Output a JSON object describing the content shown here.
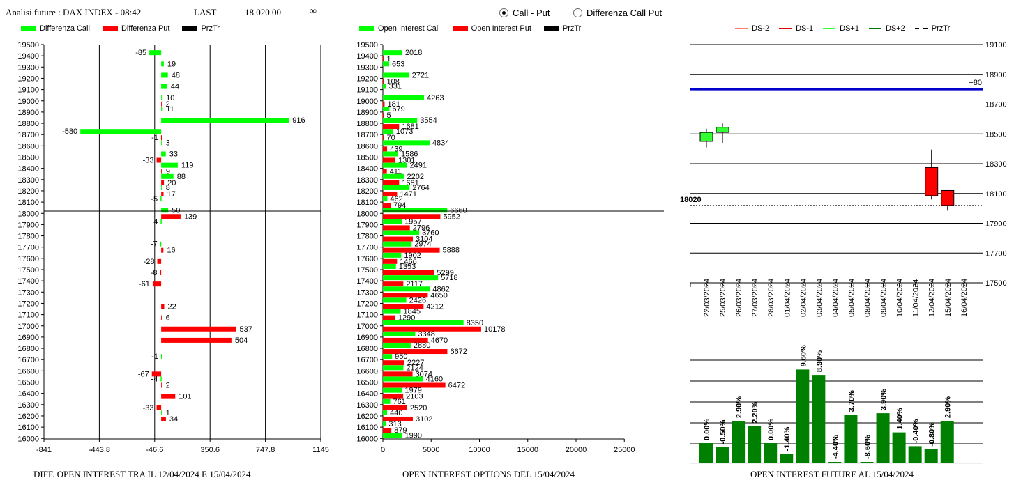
{
  "header": {
    "title": "Analisi future : DAX INDEX - 08:42",
    "last_label": "LAST",
    "last_value": "18 020.00",
    "infinity": "∞",
    "radio_call_put": "Call - Put",
    "radio_diff": "Differenza Call Put",
    "radio_selected": "call_put"
  },
  "captions": {
    "left": "DIFF. OPEN INTEREST TRA IL 12/04/2024 E 15/04/2024",
    "middle": "OPEN INTEREST OPTIONS DEL 15/04/2024",
    "right": "OPEN INTEREST FUTURE AL 15/04/2024"
  },
  "colors": {
    "call": "#00ff00",
    "put": "#ff0000",
    "price": "#000000",
    "future_bar": "#008000",
    "level": "#0000cc"
  },
  "chart_data": [
    {
      "id": "diff",
      "type": "bar",
      "orientation": "horizontal",
      "legend": [
        "Differenza Call",
        "Differenza Put",
        "PrzTr"
      ],
      "strikes": [
        19500,
        19400,
        19300,
        19200,
        19100,
        19000,
        18900,
        18800,
        18700,
        18600,
        18500,
        18400,
        18300,
        18200,
        18100,
        18000,
        17900,
        17800,
        17700,
        17600,
        17500,
        17400,
        17300,
        17200,
        17100,
        17000,
        16900,
        16800,
        16700,
        16600,
        16500,
        16400,
        16300,
        16200,
        16100,
        16000
      ],
      "call_diff": [
        null,
        -85,
        19,
        48,
        44,
        10,
        11,
        916,
        -580,
        3,
        33,
        119,
        88,
        8,
        -5,
        50,
        -4,
        null,
        -7,
        null,
        null,
        null,
        null,
        null,
        null,
        null,
        null,
        null,
        -1,
        null,
        -4,
        null,
        null,
        1,
        null,
        null
      ],
      "put_diff": [
        null,
        null,
        null,
        null,
        null,
        2,
        null,
        null,
        -1,
        null,
        -33,
        9,
        20,
        17,
        null,
        139,
        null,
        null,
        16,
        -28,
        -8,
        -61,
        null,
        22,
        6,
        537,
        504,
        null,
        null,
        -67,
        2,
        101,
        -33,
        34,
        null,
        null
      ],
      "price_level": 18020,
      "xlim": [
        -841,
        1145
      ],
      "xticks": [
        "-841",
        "-443.8",
        "-46.6",
        "350.6",
        "747.8",
        "1145"
      ]
    },
    {
      "id": "oi",
      "type": "bar",
      "orientation": "horizontal",
      "legend": [
        "Open Interest Call",
        "Open Interest Put",
        "PrzTr"
      ],
      "strikes": [
        19500,
        19400,
        19300,
        19200,
        19100,
        19000,
        18900,
        18800,
        18700,
        18600,
        18500,
        18400,
        18300,
        18200,
        18100,
        18000,
        17900,
        17800,
        17700,
        17600,
        17500,
        17400,
        17300,
        17200,
        17100,
        17000,
        16900,
        16800,
        16700,
        16600,
        16500,
        16400,
        16300,
        16200,
        16100,
        16000
      ],
      "call_oi": [
        null,
        2018,
        653,
        2721,
        331,
        4263,
        679,
        3554,
        1073,
        4834,
        1586,
        2491,
        2202,
        2764,
        462,
        6660,
        1957,
        3760,
        2974,
        1902,
        1353,
        5718,
        4862,
        2426,
        1845,
        8350,
        3348,
        2880,
        950,
        2124,
        4160,
        1979,
        761,
        440,
        313,
        1990
      ],
      "put_oi": [
        null,
        1,
        null,
        108,
        null,
        181,
        5,
        1681,
        70,
        439,
        1301,
        411,
        1681,
        1471,
        794,
        5952,
        2796,
        3104,
        5888,
        1466,
        5299,
        2117,
        4650,
        4212,
        1290,
        10178,
        4670,
        6672,
        2227,
        3074,
        6472,
        2103,
        2520,
        3102,
        879,
        null
      ],
      "price_level": 18020,
      "xlim": [
        0,
        25000
      ],
      "xticks": [
        "0",
        "5000",
        "10000",
        "15000",
        "20000",
        "25000"
      ]
    },
    {
      "id": "future_candles",
      "type": "candlestick",
      "legend": [
        "DS-2",
        "DS-1",
        "DS+1",
        "DS+2",
        "PrzTr"
      ],
      "legend_colors": [
        "#ff8060",
        "#dd0000",
        "#33ff33",
        "#007700",
        "#000000"
      ],
      "price_label": "18020",
      "level_label": "+80",
      "level_value": 18800,
      "ylim": [
        17500,
        19100
      ],
      "yticks": [
        "19100",
        "18900",
        "18700",
        "18500",
        "18300",
        "18100",
        "17900",
        "17700",
        "17500"
      ],
      "dates": [
        "22/03/2024",
        "25/03/2024",
        "26/03/2024",
        "27/03/2024",
        "28/03/2024",
        "01/04/2024",
        "02/04/2024",
        "03/04/2024",
        "04/04/2024",
        "05/04/2024",
        "08/04/2024",
        "09/04/2024",
        "10/04/2024",
        "11/04/2024",
        "12/04/2024",
        "15/04/2024",
        "16/04/2024"
      ],
      "candles": [
        {
          "date": "22/03/2024",
          "open": 18450,
          "close": 18510,
          "high": 18535,
          "low": 18410,
          "color": "green"
        },
        {
          "date": "25/03/2024",
          "open": 18510,
          "close": 18545,
          "high": 18570,
          "low": 18440,
          "color": "green"
        },
        {
          "date": "12/04/2024",
          "open": 18275,
          "close": 18085,
          "high": 18395,
          "low": 18060,
          "color": "red"
        },
        {
          "date": "15/04/2024",
          "open": 18120,
          "close": 18020,
          "high": 18120,
          "low": 17985,
          "color": "red"
        }
      ]
    },
    {
      "id": "future_oi_change",
      "type": "bar",
      "values": [
        0.0,
        -0.5,
        2.9,
        2.2,
        0.0,
        -1.4,
        9.6,
        8.9,
        -4.4,
        3.7,
        -8.6,
        3.9,
        1.4,
        -0.4,
        -0.8,
        2.9
      ],
      "labels": [
        "0.00%",
        "-0.50%",
        "2.90%",
        "2.20%",
        "0.00%",
        "-1.40%",
        "9.60%",
        "8.90%",
        "-4.40%",
        "3.70%",
        "-8.60%",
        "3.90%",
        "1.40%",
        "-0.40%",
        "-0.80%",
        "2.90%"
      ]
    }
  ]
}
